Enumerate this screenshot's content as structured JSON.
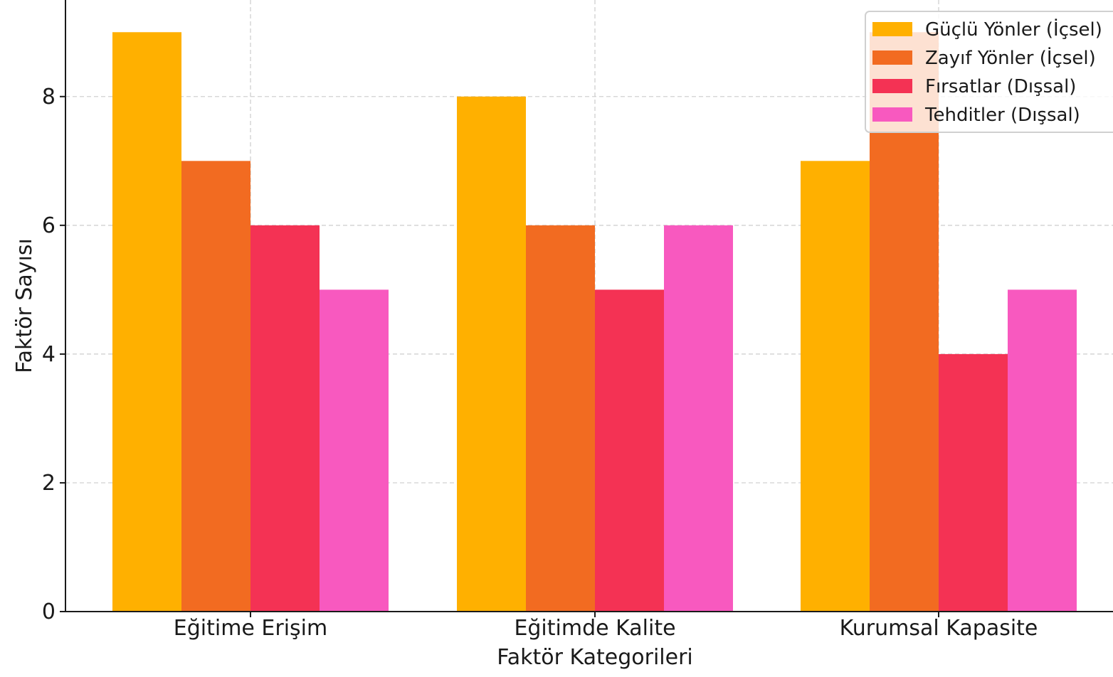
{
  "chart_data": {
    "type": "bar",
    "title": "",
    "xlabel": "Faktör Kategorileri",
    "ylabel": "Faktör Sayısı",
    "categories": [
      "Eğitime Erişim",
      "Eğitimde Kalite",
      "Kurumsal Kapasite"
    ],
    "series": [
      {
        "name": "Güçlü Yönler (İçsel)",
        "color": "#FFB000",
        "values": [
          9,
          8,
          7
        ]
      },
      {
        "name": "Zayıf Yönler (İçsel)",
        "color": "#F26B21",
        "values": [
          7,
          6,
          9
        ]
      },
      {
        "name": "Fırsatlar (Dışsal)",
        "color": "#F43254",
        "values": [
          6,
          5,
          4
        ]
      },
      {
        "name": "Tehditler (Dışsal)",
        "color": "#F859BF",
        "values": [
          5,
          6,
          5
        ]
      }
    ],
    "ylim": [
      0,
      9.5
    ],
    "yticks": [
      0,
      2,
      4,
      6,
      8
    ],
    "grid": true,
    "legend_position": "top-right"
  }
}
